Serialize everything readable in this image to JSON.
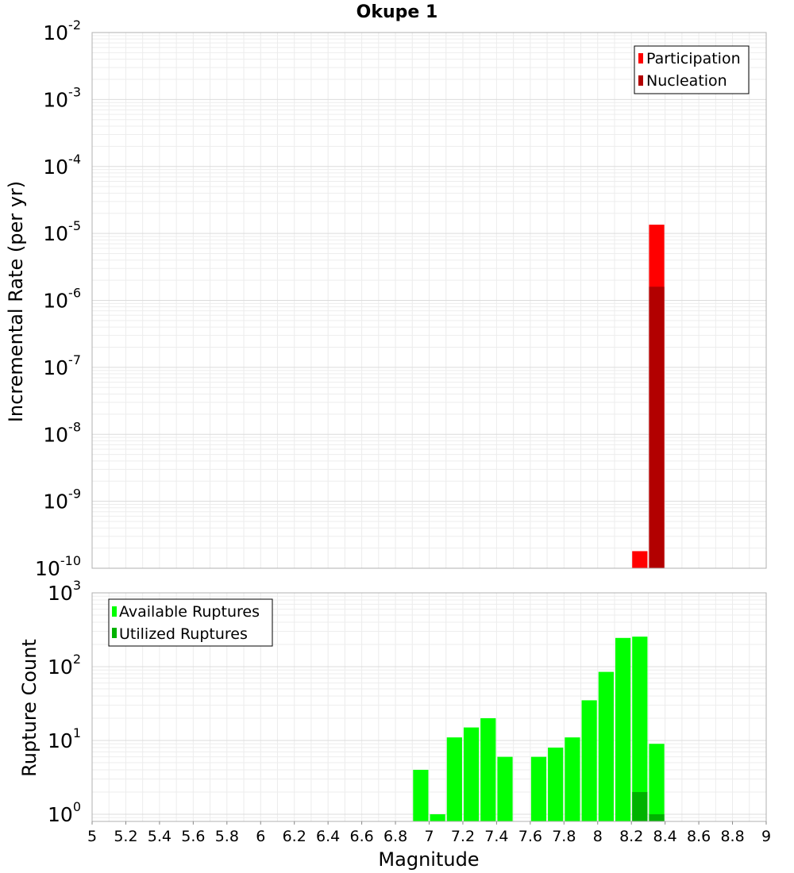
{
  "chart_data": [
    {
      "type": "bar",
      "title": "Okupe 1",
      "xlabel": "",
      "ylabel": "Incremental Rate (per yr)",
      "yscale": "log",
      "ylim": [
        1e-10,
        0.01
      ],
      "xlim": [
        5,
        9
      ],
      "bin_width": 0.1,
      "grid": true,
      "legend_position": "top-right",
      "yticks": [
        {
          "base": "10",
          "exp": "-10",
          "value": 1e-10
        },
        {
          "base": "10",
          "exp": "-9",
          "value": 1e-09
        },
        {
          "base": "10",
          "exp": "-8",
          "value": 1e-08
        },
        {
          "base": "10",
          "exp": "-7",
          "value": 1e-07
        },
        {
          "base": "10",
          "exp": "-6",
          "value": 1e-06
        },
        {
          "base": "10",
          "exp": "-5",
          "value": 1e-05
        },
        {
          "base": "10",
          "exp": "-4",
          "value": 0.0001
        },
        {
          "base": "10",
          "exp": "-3",
          "value": 0.001
        },
        {
          "base": "10",
          "exp": "-2",
          "value": 0.01
        }
      ],
      "series": [
        {
          "name": "Participation",
          "color": "#ff0000",
          "points": [
            {
              "x": 8.25,
              "y": 1.8e-10
            },
            {
              "x": 8.35,
              "y": 1.35e-05
            }
          ]
        },
        {
          "name": "Nucleation",
          "color": "#b20000",
          "points": [
            {
              "x": 8.35,
              "y": 1.6e-06
            }
          ]
        }
      ]
    },
    {
      "type": "bar",
      "title": "",
      "xlabel": "Magnitude",
      "ylabel": "Rupture Count",
      "yscale": "log",
      "ylim": [
        0.8,
        1000
      ],
      "xlim": [
        5,
        9
      ],
      "bin_width": 0.1,
      "grid": true,
      "legend_position": "top-left",
      "xticks": [
        "5",
        "5.2",
        "5.4",
        "5.6",
        "5.8",
        "6",
        "6.2",
        "6.4",
        "6.6",
        "6.8",
        "7",
        "7.2",
        "7.4",
        "7.6",
        "7.8",
        "8",
        "8.2",
        "8.4",
        "8.6",
        "8.8",
        "9"
      ],
      "yticks": [
        {
          "base": "10",
          "exp": "0",
          "value": 1
        },
        {
          "base": "10",
          "exp": "1",
          "value": 10
        },
        {
          "base": "10",
          "exp": "2",
          "value": 100
        },
        {
          "base": "10",
          "exp": "3",
          "value": 1000
        }
      ],
      "series": [
        {
          "name": "Available Ruptures",
          "color": "#00ff00",
          "points": [
            {
              "x": 6.95,
              "y": 4
            },
            {
              "x": 7.05,
              "y": 1
            },
            {
              "x": 7.15,
              "y": 11
            },
            {
              "x": 7.25,
              "y": 15
            },
            {
              "x": 7.35,
              "y": 20
            },
            {
              "x": 7.45,
              "y": 6
            },
            {
              "x": 7.65,
              "y": 6
            },
            {
              "x": 7.75,
              "y": 8
            },
            {
              "x": 7.85,
              "y": 11
            },
            {
              "x": 7.95,
              "y": 35
            },
            {
              "x": 8.05,
              "y": 85
            },
            {
              "x": 8.15,
              "y": 245
            },
            {
              "x": 8.25,
              "y": 255
            },
            {
              "x": 8.35,
              "y": 9
            }
          ]
        },
        {
          "name": "Utilized Ruptures",
          "color": "#00b200",
          "points": [
            {
              "x": 8.25,
              "y": 2
            },
            {
              "x": 8.35,
              "y": 1
            }
          ]
        }
      ]
    }
  ]
}
